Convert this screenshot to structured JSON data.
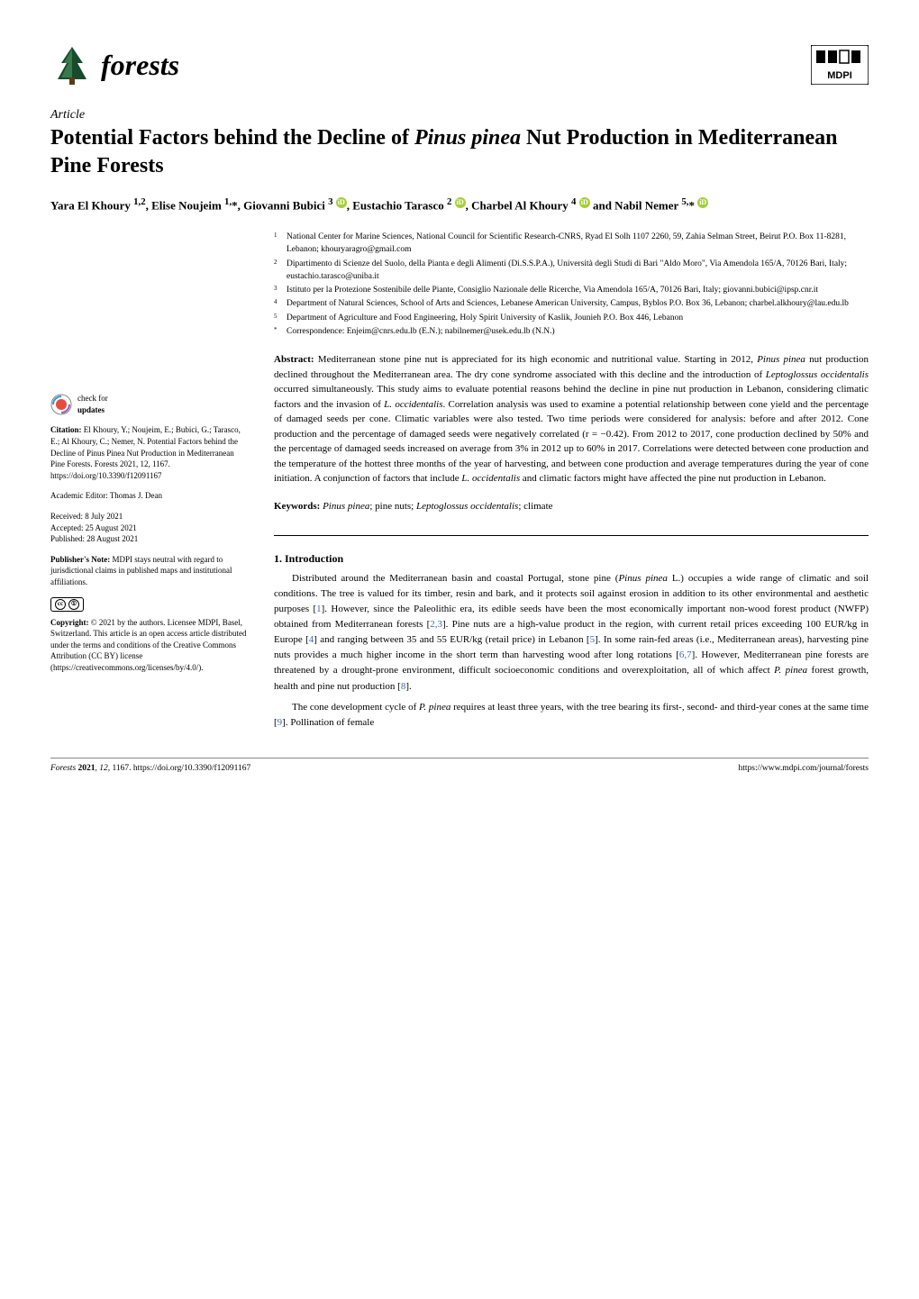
{
  "journal": {
    "name": "forests",
    "publisher": "MDPI"
  },
  "article": {
    "type": "Article",
    "title_pre": "Potential Factors behind the Decline of ",
    "title_species": "Pinus pinea",
    "title_post": " Nut Production in Mediterranean Pine Forests",
    "authors_html": "Yara El Khoury <sup>1,2</sup>, Elise Noujeim <sup>1,</sup>*, Giovanni Bubici <sup>3</sup> <span class='orcid-icon'>iD</span>, Eustachio Tarasco <sup>2</sup> <span class='orcid-icon'>iD</span>, Charbel Al Khoury <sup>4</sup> <span class='orcid-icon'>iD</span> and Nabil Nemer <sup>5,</sup>* <span class='orcid-icon'>iD</span>"
  },
  "affiliations": [
    {
      "num": "1",
      "text": "National Center for Marine Sciences, National Council for Scientific Research-CNRS, Ryad El Solh 1107 2260, 59, Zahia Selman Street, Beirut P.O. Box 11-8281, Lebanon; khouryaragro@gmail.com"
    },
    {
      "num": "2",
      "text": "Dipartimento di Scienze del Suolo, della Pianta e degli Alimenti (Di.S.S.P.A.), Università degli Studi di Bari \"Aldo Moro\", Via Amendola 165/A, 70126 Bari, Italy; eustachio.tarasco@uniba.it"
    },
    {
      "num": "3",
      "text": "Istituto per la Protezione Sostenibile delle Piante, Consiglio Nazionale delle Ricerche, Via Amendola 165/A, 70126 Bari, Italy; giovanni.bubici@ipsp.cnr.it"
    },
    {
      "num": "4",
      "text": "Department of Natural Sciences, School of Arts and Sciences, Lebanese American University, Campus, Byblos P.O. Box 36, Lebanon; charbel.alkhoury@lau.edu.lb"
    },
    {
      "num": "5",
      "text": "Department of Agriculture and Food Engineering, Holy Spirit University of Kaslik, Jounieh P.O. Box 446, Lebanon"
    },
    {
      "num": "*",
      "text": "Correspondence: Enjeim@cnrs.edu.lb (E.N.); nabilnemer@usek.edu.lb (N.N.)"
    }
  ],
  "abstract": {
    "label": "Abstract:",
    "text": " Mediterranean stone pine nut is appreciated for its high economic and nutritional value. Starting in 2012, Pinus pinea nut production declined throughout the Mediterranean area. The dry cone syndrome associated with this decline and the introduction of Leptoglossus occidentalis occurred simultaneously. This study aims to evaluate potential reasons behind the decline in pine nut production in Lebanon, considering climatic factors and the invasion of L. occidentalis. Correlation analysis was used to examine a potential relationship between cone yield and the percentage of damaged seeds per cone. Climatic variables were also tested. Two time periods were considered for analysis: before and after 2012. Cone production and the percentage of damaged seeds were negatively correlated (r = −0.42). From 2012 to 2017, cone production declined by 50% and the percentage of damaged seeds increased on average from 3% in 2012 up to 60% in 2017. Correlations were detected between cone production and the temperature of the hottest three months of the year of harvesting, and between cone production and average temperatures during the year of cone initiation. A conjunction of factors that include L. occidentalis and climatic factors might have affected the pine nut production in Lebanon."
  },
  "keywords": {
    "label": "Keywords:",
    "text": " Pinus pinea; pine nuts; Leptoglossus occidentalis; climate"
  },
  "section1": {
    "heading": "1. Introduction",
    "p1": "Distributed around the Mediterranean basin and coastal Portugal, stone pine (Pinus pinea L.) occupies a wide range of climatic and soil conditions. The tree is valued for its timber, resin and bark, and it protects soil against erosion in addition to its other environmental and aesthetic purposes [1]. However, since the Paleolithic era, its edible seeds have been the most economically important non-wood forest product (NWFP) obtained from Mediterranean forests [2,3]. Pine nuts are a high-value product in the region, with current retail prices exceeding 100 EUR/kg in Europe [4] and ranging between 35 and 55 EUR/kg (retail price) in Lebanon [5]. In some rain-fed areas (i.e., Mediterranean areas), harvesting pine nuts provides a much higher income in the short term than harvesting wood after long rotations [6,7]. However, Mediterranean pine forests are threatened by a drought-prone environment, difficult socioeconomic conditions and overexploitation, all of which affect P. pinea forest growth, health and pine nut production [8].",
    "p2": "The cone development cycle of P. pinea requires at least three years, with the tree bearing its first-, second- and third-year cones at the same time [9]. Pollination of female"
  },
  "sidebar": {
    "check_updates": "check for",
    "check_updates_bold": "updates",
    "citation_label": "Citation:",
    "citation": " El Khoury, Y.; Noujeim, E.; Bubici, G.; Tarasco, E.; Al Khoury, C.; Nemer, N. Potential Factors behind the Decline of Pinus Pinea Nut Production in Mediterranean Pine Forests. Forests 2021, 12, 1167. https://doi.org/10.3390/f12091167",
    "editor_label": "Academic Editor: ",
    "editor": "Thomas J. Dean",
    "received": "Received: 8 July 2021",
    "accepted": "Accepted: 25 August 2021",
    "published": "Published: 28 August 2021",
    "publisher_note_label": "Publisher's Note:",
    "publisher_note": " MDPI stays neutral with regard to jurisdictional claims in published maps and institutional affiliations.",
    "copyright_label": "Copyright:",
    "copyright": " © 2021 by the authors. Licensee MDPI, Basel, Switzerland. This article is an open access article distributed under the terms and conditions of the Creative Commons Attribution (CC BY) license (https://creativecommons.org/licenses/by/4.0/)."
  },
  "footer": {
    "left": "Forests 2021, 12, 1167. https://doi.org/10.3390/f12091167",
    "right": "https://www.mdpi.com/journal/forests"
  },
  "colors": {
    "text": "#000000",
    "background": "#ffffff",
    "link": "#4169b0",
    "orcid": "#a6ce39",
    "tree_dark": "#184b2e",
    "tree_light": "#3a7a4a"
  },
  "typography": {
    "body_fontsize_pt": 11,
    "title_fontsize_pt": 24,
    "sidebar_fontsize_pt": 9,
    "affil_fontsize_pt": 9.5
  }
}
